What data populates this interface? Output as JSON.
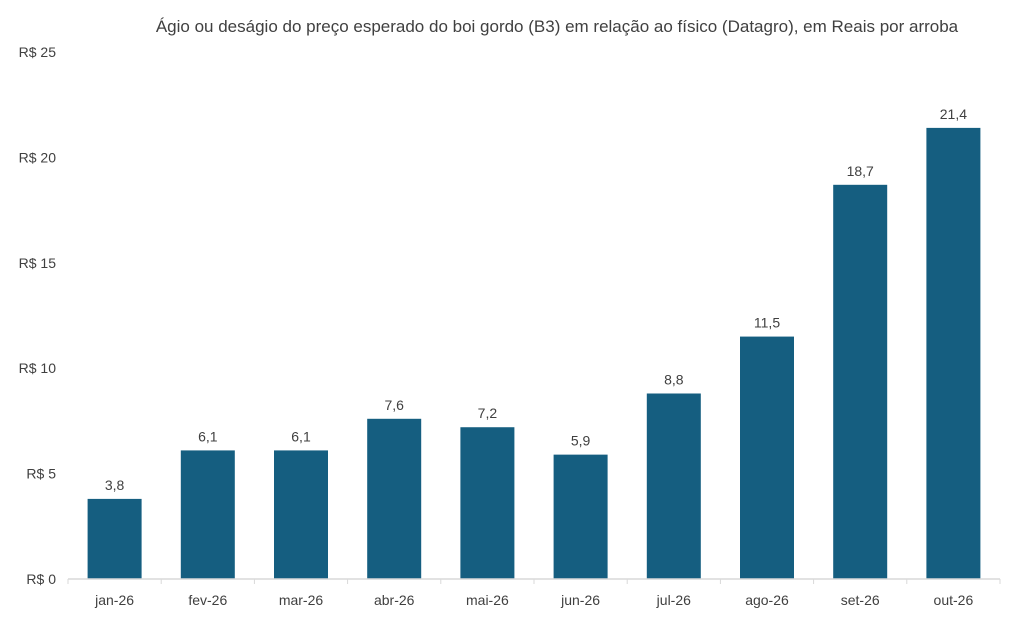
{
  "chart_data": {
    "type": "bar",
    "title": "Ágio ou deságio do preço esperado  do boi gordo (B3) em relação ao físico (Datagro), em Reais por arroba",
    "categories": [
      "jan-26",
      "fev-26",
      "mar-26",
      "abr-26",
      "mai-26",
      "jun-26",
      "jul-26",
      "ago-26",
      "set-26",
      "out-26"
    ],
    "values": [
      3.8,
      6.1,
      6.1,
      7.6,
      7.2,
      5.9,
      8.8,
      11.5,
      18.7,
      21.4
    ],
    "data_labels": [
      "3,8",
      "6,1",
      "6,1",
      "7,6",
      "7,2",
      "5,9",
      "8,8",
      "11,5",
      "18,7",
      "21,4"
    ],
    "ylim": [
      0,
      25
    ],
    "yticks": [
      0,
      5,
      10,
      15,
      20,
      25
    ],
    "ytick_labels": [
      "R$ 0",
      "R$ 5",
      "R$ 10",
      "R$ 15",
      "R$ 20",
      "R$ 25"
    ],
    "xlabel": "",
    "ylabel": "",
    "grid": false,
    "legend": "none",
    "colors": {
      "bar": "#155e80",
      "axis": "#d9d9d9",
      "text": "#404040"
    }
  }
}
